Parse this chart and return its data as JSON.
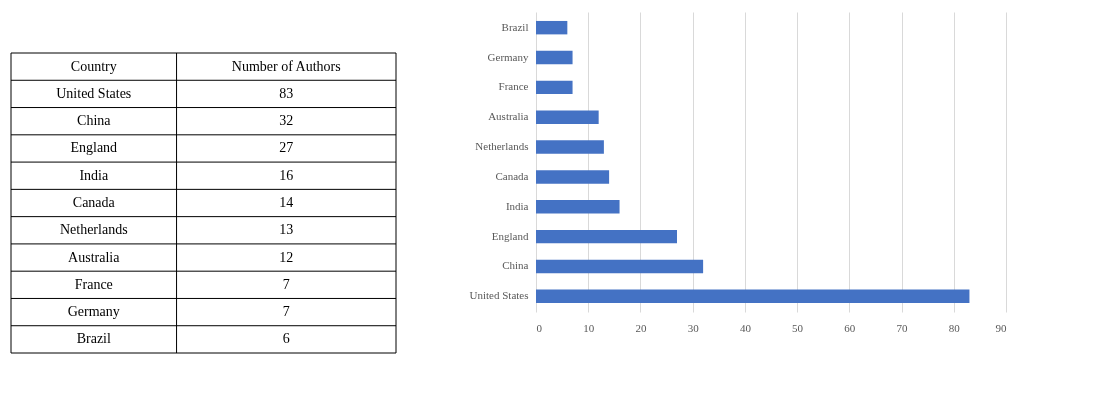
{
  "chart_data": [
    {
      "type": "other",
      "categories": [
        "United States",
        "China",
        "England",
        "India",
        "Canada",
        "Netherlands",
        "Australia",
        "France",
        "Germany",
        "Brazil"
      ],
      "values": [
        83,
        32,
        27,
        16,
        14,
        13,
        12,
        7,
        7,
        6
      ],
      "data_labels": true,
      "annotations": [
        "Country",
        "Number of Authors"
      ]
    },
    {
      "type": "bar",
      "orientation": "horizontal",
      "categories": [
        "Brazil",
        "Germany",
        "France",
        "Australia",
        "Netherlands",
        "Canada",
        "India",
        "England",
        "China",
        "United States"
      ],
      "values": [
        6,
        7,
        7,
        12,
        13,
        14,
        16,
        27,
        32,
        83
      ],
      "color": "#4472c4",
      "xlim": [
        0,
        90
      ],
      "xticks": [
        0,
        10,
        20,
        30,
        40,
        50,
        60,
        70,
        80,
        90
      ],
      "grid": "x"
    }
  ]
}
